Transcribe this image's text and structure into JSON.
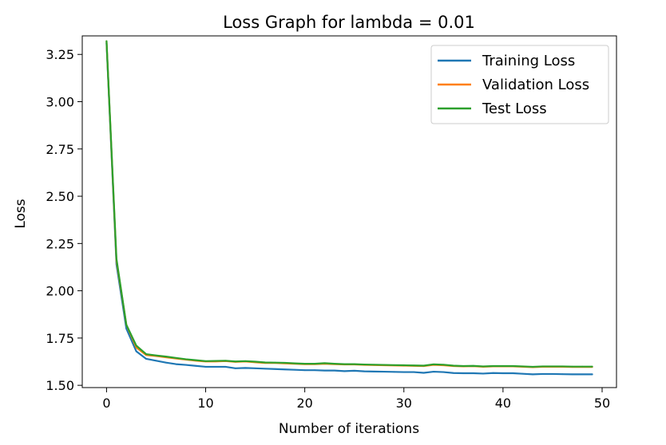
{
  "chart_data": {
    "type": "line",
    "title": "Loss Graph for lambda = 0.01",
    "xlabel": "Number of iterations",
    "ylabel": "Loss",
    "xlim": [
      -2.45,
      51.45
    ],
    "ylim": [
      1.488,
      3.348
    ],
    "xticks": [
      0,
      10,
      20,
      30,
      40,
      50
    ],
    "yticks": [
      1.5,
      1.75,
      2.0,
      2.25,
      2.5,
      2.75,
      3.0,
      3.25
    ],
    "ytick_labels": [
      "1.50",
      "1.75",
      "2.00",
      "2.25",
      "2.50",
      "2.75",
      "3.00",
      "3.25"
    ],
    "grid": false,
    "legend_position": "top-right",
    "x": [
      0,
      1,
      2,
      3,
      4,
      5,
      6,
      7,
      8,
      9,
      10,
      11,
      12,
      13,
      14,
      15,
      16,
      17,
      18,
      19,
      20,
      21,
      22,
      23,
      24,
      25,
      26,
      27,
      28,
      29,
      30,
      31,
      32,
      33,
      34,
      35,
      36,
      37,
      38,
      39,
      40,
      41,
      42,
      43,
      44,
      45,
      46,
      47,
      48,
      49
    ],
    "series": [
      {
        "name": "Training Loss",
        "color": "#1f77b4",
        "values": [
          3.31,
          2.14,
          1.8,
          1.68,
          1.64,
          1.63,
          1.62,
          1.612,
          1.608,
          1.603,
          1.598,
          1.598,
          1.598,
          1.59,
          1.592,
          1.59,
          1.588,
          1.586,
          1.584,
          1.582,
          1.58,
          1.58,
          1.578,
          1.578,
          1.575,
          1.577,
          1.574,
          1.573,
          1.572,
          1.571,
          1.57,
          1.57,
          1.566,
          1.572,
          1.57,
          1.565,
          1.564,
          1.564,
          1.562,
          1.565,
          1.564,
          1.564,
          1.561,
          1.558,
          1.56,
          1.56,
          1.559,
          1.558,
          1.558,
          1.558
        ]
      },
      {
        "name": "Validation Loss",
        "color": "#ff7f0e",
        "values": [
          3.32,
          2.16,
          1.82,
          1.7,
          1.66,
          1.655,
          1.648,
          1.642,
          1.636,
          1.63,
          1.626,
          1.626,
          1.628,
          1.624,
          1.626,
          1.622,
          1.618,
          1.618,
          1.616,
          1.614,
          1.612,
          1.612,
          1.614,
          1.612,
          1.61,
          1.61,
          1.608,
          1.607,
          1.606,
          1.605,
          1.604,
          1.603,
          1.602,
          1.608,
          1.606,
          1.602,
          1.6,
          1.601,
          1.598,
          1.6,
          1.6,
          1.6,
          1.598,
          1.596,
          1.598,
          1.598,
          1.598,
          1.597,
          1.597,
          1.597
        ]
      },
      {
        "name": "Test Loss",
        "color": "#2ca02c",
        "values": [
          3.32,
          2.17,
          1.82,
          1.71,
          1.665,
          1.658,
          1.652,
          1.645,
          1.638,
          1.633,
          1.628,
          1.629,
          1.63,
          1.626,
          1.628,
          1.625,
          1.621,
          1.62,
          1.619,
          1.616,
          1.614,
          1.614,
          1.617,
          1.614,
          1.612,
          1.612,
          1.61,
          1.609,
          1.608,
          1.607,
          1.606,
          1.605,
          1.604,
          1.611,
          1.609,
          1.604,
          1.602,
          1.603,
          1.6,
          1.602,
          1.602,
          1.602,
          1.6,
          1.598,
          1.6,
          1.6,
          1.6,
          1.599,
          1.599,
          1.599
        ]
      }
    ]
  }
}
